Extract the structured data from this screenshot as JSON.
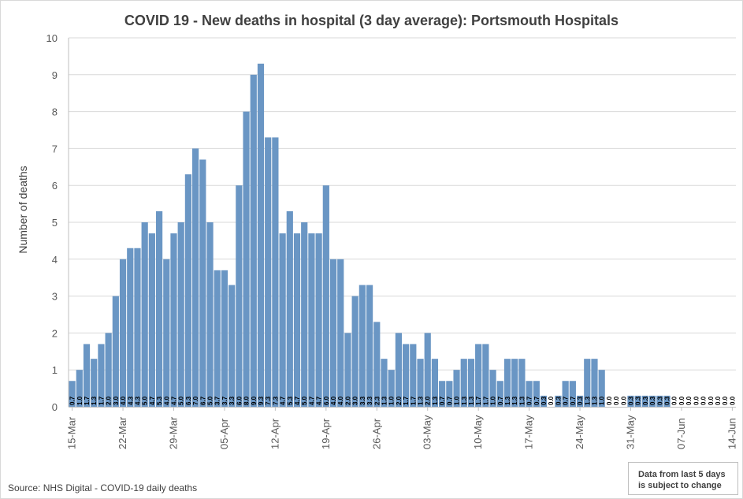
{
  "chart_data": {
    "type": "bar",
    "title": "COVID 19 - New deaths in hospital (3 day average): Portsmouth Hospitals",
    "ylabel": "Number of deaths",
    "xlabel": "",
    "ylim": [
      0,
      10
    ],
    "yticks": [
      "0",
      "1",
      "2",
      "3",
      "4",
      "5",
      "6",
      "7",
      "8",
      "9",
      "10"
    ],
    "grid": true,
    "bar_color": "#6a96c4",
    "x_tick_labels": [
      {
        "index": 0,
        "label": "15-Mar"
      },
      {
        "index": 7,
        "label": "22-Mar"
      },
      {
        "index": 14,
        "label": "29-Mar"
      },
      {
        "index": 21,
        "label": "05-Apr"
      },
      {
        "index": 28,
        "label": "12-Apr"
      },
      {
        "index": 35,
        "label": "19-Apr"
      },
      {
        "index": 42,
        "label": "26-Apr"
      },
      {
        "index": 49,
        "label": "03-May"
      },
      {
        "index": 56,
        "label": "10-May"
      },
      {
        "index": 63,
        "label": "17-May"
      },
      {
        "index": 70,
        "label": "24-May"
      },
      {
        "index": 77,
        "label": "31-May"
      },
      {
        "index": 84,
        "label": "07-Jun"
      },
      {
        "index": 91,
        "label": "14-Jun"
      }
    ],
    "values": [
      0.7,
      1.0,
      1.7,
      1.3,
      1.7,
      2.0,
      3.0,
      4.0,
      4.3,
      4.3,
      5.0,
      4.7,
      5.3,
      4.0,
      4.7,
      5.0,
      6.3,
      7.0,
      6.7,
      5.0,
      3.7,
      3.7,
      3.3,
      6.0,
      8.0,
      9.0,
      9.3,
      7.3,
      7.3,
      4.7,
      5.3,
      4.7,
      5.0,
      4.7,
      4.7,
      6.0,
      4.0,
      4.0,
      2.0,
      3.0,
      3.3,
      3.3,
      2.3,
      1.3,
      1.0,
      2.0,
      1.7,
      1.7,
      1.3,
      2.0,
      1.3,
      0.7,
      0.7,
      1.0,
      1.3,
      1.3,
      1.7,
      1.7,
      1.0,
      0.7,
      1.3,
      1.3,
      1.3,
      0.7,
      0.7,
      0.3,
      0.0,
      0.3,
      0.7,
      0.7,
      0.3,
      1.3,
      1.3,
      1.0,
      0.0,
      0.0,
      0.0,
      0.3,
      0.3,
      0.3,
      0.3,
      0.3,
      0.3,
      0.0,
      0.0,
      0.0,
      0.0,
      0.0,
      0.0,
      0.0,
      0.0,
      0.0
    ],
    "data_labels": [
      "0.7",
      "1.0",
      "1.7",
      "1.3",
      "1.7",
      "2.0",
      "3.0",
      "4.0",
      "4.3",
      "4.3",
      "5.0",
      "4.7",
      "5.3",
      "4.0",
      "4.7",
      "5.0",
      "6.3",
      "7.0",
      "6.7",
      "5.0",
      "3.7",
      "3.7",
      "3.3",
      "6.0",
      "8.0",
      "9.0",
      "9.3",
      "7.3",
      "7.3",
      "4.7",
      "5.3",
      "4.7",
      "5.0",
      "4.7",
      "4.7",
      "6.0",
      "4.0",
      "4.0",
      "2.0",
      "3.0",
      "3.3",
      "3.3",
      "2.3",
      "1.3",
      "1.0",
      "2.0",
      "1.7",
      "1.7",
      "1.3",
      "2.0",
      "1.3",
      "0.7",
      "0.7",
      "1.0",
      "1.3",
      "1.3",
      "1.7",
      "1.7",
      "1.0",
      "0.7",
      "1.3",
      "1.3",
      "1.3",
      "0.7",
      "0.7",
      "0.3",
      "0.0",
      "0.3",
      "0.7",
      "0.7",
      "0.3",
      "1.3",
      "1.3",
      "1.0",
      "0.0",
      "0.0",
      "0.0",
      "0.3",
      "0.3",
      "0.3",
      "0.3",
      "0.3",
      "0.3",
      "0.0",
      "0.0",
      "0.0",
      "0.0",
      "0.0",
      "0.0",
      "0.0",
      "0.0",
      "0.0"
    ]
  },
  "source": "Source: NHS Digital - COVID-19 daily deaths",
  "note_line1": "Data from last 5 days",
  "note_line2": "is subject to change"
}
